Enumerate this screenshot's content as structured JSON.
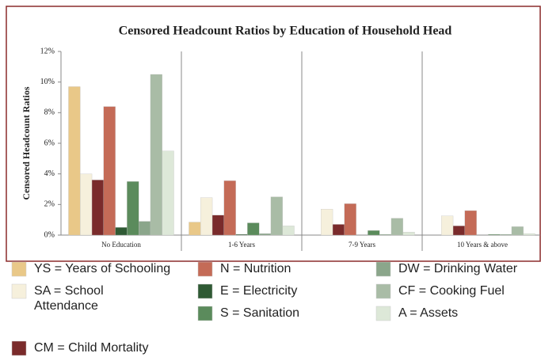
{
  "chart_data": {
    "type": "bar",
    "title": "Censored Headcount Ratios by Education of Household Head",
    "y_label": "Censored Headcount Ratios",
    "categories": [
      "No Education",
      "1-6 Years",
      "7-9 Years",
      "10 Years & above"
    ],
    "series": [
      {
        "name": "YS = Years of Schooling",
        "color": "#e9c888",
        "values": [
          9.7,
          0.85,
          0,
          0
        ]
      },
      {
        "name": "SA = School Attendance",
        "color": "#f6f0dc",
        "values": [
          4.0,
          2.45,
          1.7,
          1.25
        ]
      },
      {
        "name": "CM = Child Mortality",
        "color": "#7a2b2b",
        "values": [
          3.6,
          1.3,
          0.7,
          0.6
        ]
      },
      {
        "name": "N = Nutrition",
        "color": "#c46b57",
        "values": [
          8.4,
          3.55,
          2.05,
          1.6
        ]
      },
      {
        "name": "E = Electricity",
        "color": "#2f5a34",
        "values": [
          0.5,
          0.05,
          0,
          0
        ]
      },
      {
        "name": "S = Sanitation",
        "color": "#5b8b5c",
        "values": [
          3.5,
          0.8,
          0.3,
          0.05
        ]
      },
      {
        "name": "DW = Drinking Water",
        "color": "#8ba68b",
        "values": [
          0.9,
          0.1,
          0.05,
          0.05
        ]
      },
      {
        "name": "CF = Cooking Fuel",
        "color": "#a9bca6",
        "values": [
          10.5,
          2.5,
          1.1,
          0.55
        ]
      },
      {
        "name": "A = Assets",
        "color": "#dde8d8",
        "values": [
          5.5,
          0.6,
          0.2,
          0.1
        ]
      }
    ],
    "ylim": [
      0,
      12
    ],
    "yticks": [
      {
        "value": 0,
        "label": "0%"
      },
      {
        "value": 2,
        "label": "2%"
      },
      {
        "value": 4,
        "label": "4%"
      },
      {
        "value": 6,
        "label": "6%"
      },
      {
        "value": 8,
        "label": "8%"
      },
      {
        "value": 10,
        "label": "10%"
      },
      {
        "value": 12,
        "label": "12%"
      }
    ],
    "grid": false
  }
}
